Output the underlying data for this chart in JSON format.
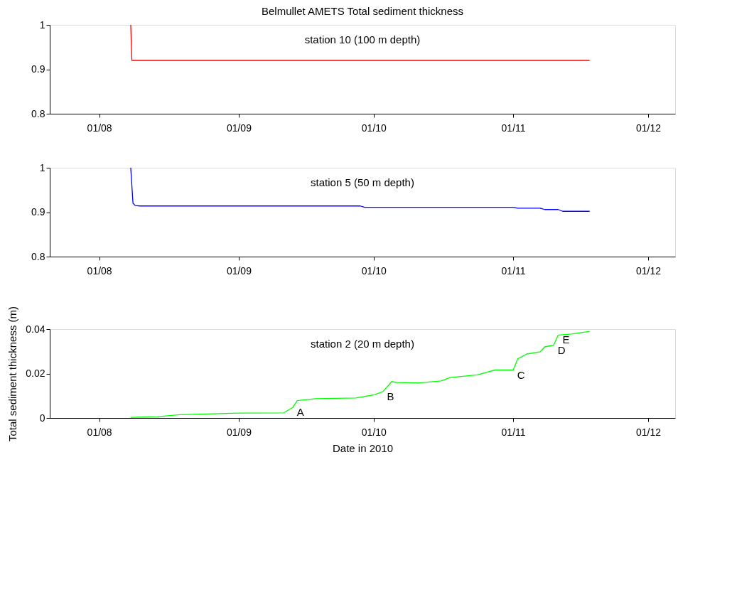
{
  "chart_data": [
    {
      "type": "line",
      "title": "Belmullet AMETS Total sediment thickness",
      "annotations": [
        "station 10 (100 m depth)"
      ],
      "x": [
        "2010-08-08T00:00",
        "2010-08-08T06:00",
        "2010-11-18"
      ],
      "series": [
        {
          "color": "#ff0000",
          "values": [
            1,
            0.92,
            0.92
          ]
        }
      ],
      "xlim": [
        "2010-07-21",
        "2010-12-07"
      ],
      "xticks": [
        {
          "value": "2010-08-01",
          "label": "01/08"
        },
        {
          "value": "2010-09-01",
          "label": "01/09"
        },
        {
          "value": "2010-10-01",
          "label": "01/10"
        },
        {
          "value": "2010-11-01",
          "label": "01/11"
        },
        {
          "value": "2010-12-01",
          "label": "01/12"
        }
      ],
      "ylim": [
        0.8,
        1
      ],
      "yticks": [
        0.8,
        0.9,
        1
      ],
      "grid": false
    },
    {
      "type": "line",
      "annotations": [
        "station 5 (50 m depth)"
      ],
      "x": [
        "2010-08-08T00:00",
        "2010-08-08T12:00",
        "2010-08-09",
        "2010-08-10",
        "2010-09-28",
        "2010-09-29",
        "2010-11-01",
        "2010-11-02",
        "2010-11-07",
        "2010-11-08",
        "2010-11-11",
        "2010-11-12",
        "2010-11-18"
      ],
      "series": [
        {
          "color": "#0000ff",
          "values": [
            1,
            0.92,
            0.915,
            0.914,
            0.914,
            0.911,
            0.911,
            0.909,
            0.909,
            0.906,
            0.906,
            0.902,
            0.902
          ]
        }
      ],
      "xlim": [
        "2010-07-21",
        "2010-12-07"
      ],
      "xticks": [
        {
          "value": "2010-08-01",
          "label": "01/08"
        },
        {
          "value": "2010-09-01",
          "label": "01/09"
        },
        {
          "value": "2010-10-01",
          "label": "01/10"
        },
        {
          "value": "2010-11-01",
          "label": "01/11"
        },
        {
          "value": "2010-12-01",
          "label": "01/12"
        }
      ],
      "ylim": [
        0.8,
        1
      ],
      "yticks": [
        0.8,
        0.9,
        1
      ],
      "grid": false
    },
    {
      "type": "line",
      "xlabel": "Date in 2010",
      "ylabel": "Total sediment thickness (m)",
      "annotations": [
        "station 2 (20 m depth)",
        {
          "text": "A",
          "x": "2010-09-13",
          "y": 0.0047
        },
        {
          "text": "B",
          "x": "2010-10-03",
          "y": 0.0118
        },
        {
          "text": "C",
          "x": "2010-11-01",
          "y": 0.0216
        },
        {
          "text": "D",
          "x": "2010-11-10",
          "y": 0.0328
        },
        {
          "text": "E",
          "x": "2010-11-11",
          "y": 0.0373
        }
      ],
      "x": [
        "2010-08-08",
        "2010-08-14",
        "2010-08-19",
        "2010-09-01",
        "2010-09-11",
        "2010-09-13",
        "2010-09-14",
        "2010-09-18",
        "2010-09-27",
        "2010-10-01",
        "2010-10-03",
        "2010-10-05",
        "2010-10-06",
        "2010-10-11",
        "2010-10-16",
        "2010-10-18",
        "2010-10-24",
        "2010-10-28",
        "2010-11-01",
        "2010-11-02",
        "2010-11-04",
        "2010-11-07",
        "2010-11-08",
        "2010-11-10",
        "2010-11-11",
        "2010-11-14",
        "2010-11-18"
      ],
      "series": [
        {
          "color": "#00ff00",
          "values": [
            0.0003,
            0.0006,
            0.0015,
            0.0022,
            0.0023,
            0.0047,
            0.0078,
            0.0087,
            0.009,
            0.0104,
            0.0118,
            0.0164,
            0.016,
            0.0158,
            0.0167,
            0.0182,
            0.0194,
            0.0216,
            0.0216,
            0.0266,
            0.0288,
            0.0298,
            0.032,
            0.0328,
            0.0373,
            0.0378,
            0.039
          ]
        }
      ],
      "xlim": [
        "2010-07-21",
        "2010-12-07"
      ],
      "xticks": [
        {
          "value": "2010-08-01",
          "label": "01/08"
        },
        {
          "value": "2010-09-01",
          "label": "01/09"
        },
        {
          "value": "2010-10-01",
          "label": "01/10"
        },
        {
          "value": "2010-11-01",
          "label": "01/11"
        },
        {
          "value": "2010-12-01",
          "label": "01/12"
        }
      ],
      "ylim": [
        0,
        0.04
      ],
      "yticks": [
        0,
        0.02,
        0.04
      ],
      "grid": false
    }
  ]
}
